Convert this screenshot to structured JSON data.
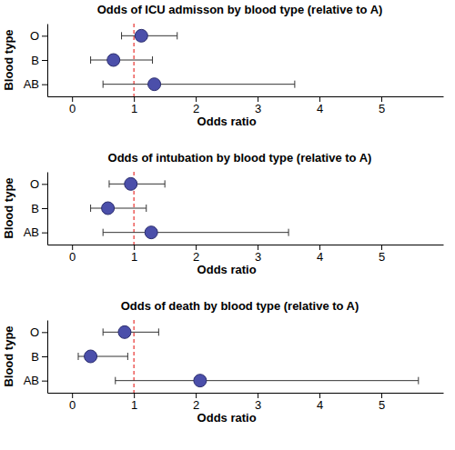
{
  "chart_data": [
    {
      "type": "forest",
      "title": "Odds of ICU admisson by blood type (relative to A)",
      "x_label": "Odds ratio",
      "y_label": "Blood type",
      "categories": [
        "O",
        "B",
        "AB"
      ],
      "values": [
        1.12,
        0.67,
        1.33
      ],
      "ci_low": [
        0.8,
        0.3,
        0.5
      ],
      "ci_high": [
        1.7,
        1.3,
        3.6
      ],
      "ref_line": 1,
      "color": "#4b4faa",
      "xlim": [
        -0.4,
        6
      ],
      "xticks": [
        0,
        1,
        2,
        3,
        4,
        5
      ]
    },
    {
      "type": "forest",
      "title": "Odds of intubation by blood type (relative to A)",
      "x_label": "Odds ratio",
      "y_label": "Blood type",
      "categories": [
        "O",
        "B",
        "AB"
      ],
      "values": [
        0.95,
        0.58,
        1.28
      ],
      "ci_low": [
        0.6,
        0.3,
        0.5
      ],
      "ci_high": [
        1.5,
        1.2,
        3.5
      ],
      "ref_line": 1,
      "color": "#4b4faa",
      "xlim": [
        -0.4,
        6
      ],
      "xticks": [
        0,
        1,
        2,
        3,
        4,
        5
      ]
    },
    {
      "type": "forest",
      "title": "Odds of death by blood type (relative to A)",
      "x_label": "Odds ratio",
      "y_label": "Blood type",
      "categories": [
        "O",
        "B",
        "AB"
      ],
      "values": [
        0.85,
        0.3,
        2.07
      ],
      "ci_low": [
        0.5,
        0.1,
        0.7
      ],
      "ci_high": [
        1.4,
        0.9,
        5.6
      ],
      "ref_line": 1,
      "color": "#4b4faa",
      "xlim": [
        -0.4,
        6
      ],
      "xticks": [
        0,
        1,
        2,
        3,
        4,
        5
      ]
    }
  ]
}
